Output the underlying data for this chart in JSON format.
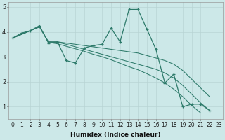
{
  "xlabel": "Humidex (Indice chaleur)",
  "x_values": [
    0,
    1,
    2,
    3,
    4,
    5,
    6,
    7,
    8,
    9,
    10,
    11,
    12,
    13,
    14,
    15,
    16,
    17,
    18,
    19,
    20,
    21,
    22,
    23
  ],
  "line1": [
    3.75,
    3.95,
    4.05,
    4.25,
    3.55,
    3.6,
    2.85,
    2.75,
    3.35,
    3.45,
    3.5,
    4.15,
    3.6,
    4.9,
    4.9,
    4.1,
    3.3,
    1.95,
    2.3,
    1.0,
    1.1,
    1.1,
    0.85,
    null
  ],
  "line2": [
    3.75,
    3.9,
    4.05,
    4.2,
    3.6,
    3.6,
    3.55,
    3.5,
    3.45,
    3.4,
    3.35,
    3.3,
    3.25,
    3.2,
    3.15,
    3.05,
    2.95,
    2.85,
    2.7,
    2.45,
    2.1,
    1.75,
    1.4,
    null
  ],
  "line3": [
    3.75,
    3.9,
    4.05,
    4.2,
    3.6,
    3.58,
    3.5,
    3.4,
    3.3,
    3.2,
    3.1,
    3.0,
    2.9,
    2.8,
    2.7,
    2.6,
    2.5,
    2.35,
    2.15,
    1.85,
    1.5,
    1.15,
    0.85,
    null
  ],
  "line4": [
    3.75,
    3.9,
    4.05,
    4.2,
    3.58,
    3.52,
    3.42,
    3.32,
    3.22,
    3.1,
    3.0,
    2.88,
    2.74,
    2.6,
    2.48,
    2.32,
    2.15,
    1.95,
    1.7,
    1.4,
    1.05,
    0.75,
    null,
    null
  ],
  "bg_color": "#cce8e8",
  "line_color": "#2d7a6a",
  "grid_color": "#b8d4d4",
  "ylim_min": 0.5,
  "ylim_max": 5.2,
  "xlim_min": -0.5,
  "xlim_max": 23.5,
  "yticks": [
    1,
    2,
    3,
    4,
    5
  ],
  "xticks": [
    0,
    1,
    2,
    3,
    4,
    5,
    6,
    7,
    8,
    9,
    10,
    11,
    12,
    13,
    14,
    15,
    16,
    17,
    18,
    19,
    20,
    21,
    22,
    23
  ],
  "tick_fontsize": 5.5,
  "xlabel_fontsize": 6.5
}
